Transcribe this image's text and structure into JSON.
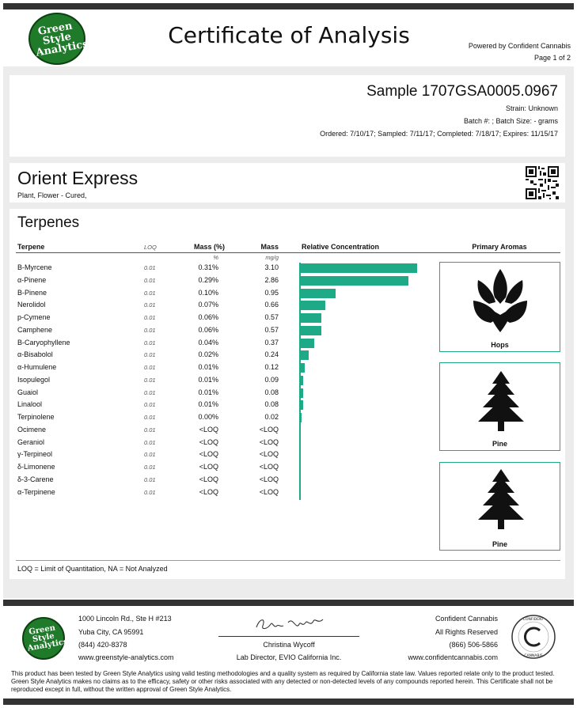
{
  "header": {
    "logo_text": "Green Style Analytics",
    "title": "Certificate of Analysis",
    "powered_by": "Powered by Confident Cannabis",
    "page": "Page 1 of 2"
  },
  "sample": {
    "id": "Sample 1707GSA0005.0967",
    "strain": "Strain: Unknown",
    "batch": "Batch #: ; Batch Size: - grams",
    "dates": "Ordered: 7/10/17; Sampled: 7/11/17; Completed: 7/18/17; Expires: 11/15/17"
  },
  "product": {
    "name": "Orient Express",
    "type": "Plant, Flower - Cured,"
  },
  "terpenes": {
    "section_title": "Terpenes",
    "headers": {
      "terpene": "Terpene",
      "loq": "LOQ",
      "mass_pct": "Mass (%)",
      "mass": "Mass",
      "relative": "Relative Concentration",
      "aromas": "Primary Aromas"
    },
    "units": {
      "mass_pct": "%",
      "mass": "mg/g"
    },
    "rows": [
      {
        "name": "B-Myrcene",
        "loq": "0.01",
        "pct": "0.31%",
        "mgg": "3.10",
        "value": 3.1
      },
      {
        "name": "α-Pinene",
        "loq": "0.01",
        "pct": "0.29%",
        "mgg": "2.86",
        "value": 2.86
      },
      {
        "name": "B-Pinene",
        "loq": "0.01",
        "pct": "0.10%",
        "mgg": "0.95",
        "value": 0.95
      },
      {
        "name": "Nerolidol",
        "loq": "0.01",
        "pct": "0.07%",
        "mgg": "0.66",
        "value": 0.66
      },
      {
        "name": "p-Cymene",
        "loq": "0.01",
        "pct": "0.06%",
        "mgg": "0.57",
        "value": 0.57
      },
      {
        "name": "Camphene",
        "loq": "0.01",
        "pct": "0.06%",
        "mgg": "0.57",
        "value": 0.57
      },
      {
        "name": "B-Caryophyllene",
        "loq": "0.01",
        "pct": "0.04%",
        "mgg": "0.37",
        "value": 0.37
      },
      {
        "name": "α-Bisabolol",
        "loq": "0.01",
        "pct": "0.02%",
        "mgg": "0.24",
        "value": 0.24
      },
      {
        "name": "α-Humulene",
        "loq": "0.01",
        "pct": "0.01%",
        "mgg": "0.12",
        "value": 0.12
      },
      {
        "name": "Isopulegol",
        "loq": "0.01",
        "pct": "0.01%",
        "mgg": "0.09",
        "value": 0.09
      },
      {
        "name": "Guaiol",
        "loq": "0.01",
        "pct": "0.01%",
        "mgg": "0.08",
        "value": 0.08
      },
      {
        "name": "Linalool",
        "loq": "0.01",
        "pct": "0.01%",
        "mgg": "0.08",
        "value": 0.08
      },
      {
        "name": "Terpinolene",
        "loq": "0.01",
        "pct": "0.00%",
        "mgg": "0.02",
        "value": 0.02
      },
      {
        "name": "Ocimene",
        "loq": "0.01",
        "pct": "<LOQ",
        "mgg": "<LOQ",
        "value": 0
      },
      {
        "name": "Geraniol",
        "loq": "0.01",
        "pct": "<LOQ",
        "mgg": "<LOQ",
        "value": 0
      },
      {
        "name": "γ-Terpineol",
        "loq": "0.01",
        "pct": "<LOQ",
        "mgg": "<LOQ",
        "value": 0
      },
      {
        "name": "δ-Limonene",
        "loq": "0.01",
        "pct": "<LOQ",
        "mgg": "<LOQ",
        "value": 0
      },
      {
        "name": "δ-3-Carene",
        "loq": "0.01",
        "pct": "<LOQ",
        "mgg": "<LOQ",
        "value": 0
      },
      {
        "name": "α-Terpinene",
        "loq": "0.01",
        "pct": "<LOQ",
        "mgg": "<LOQ",
        "value": 0
      }
    ],
    "aromas": [
      {
        "label": "Hops",
        "icon": "hops-icon"
      },
      {
        "label": "Pine",
        "icon": "pine-tree-icon"
      },
      {
        "label": "Pine",
        "icon": "pine-tree-icon"
      }
    ],
    "legend": "LOQ = Limit of Quantitation, NA = Not Analyzed",
    "bar_color": "#1faa87"
  },
  "footer": {
    "lab_address_1": "1000 Lincoln Rd., Ste H #213",
    "lab_address_2": "Yuba City, CA 95991",
    "lab_phone": "(844) 420-8378",
    "lab_web": "www.greenstyle-analytics.com",
    "signer_name": "Christina Wycoff",
    "signer_title": "Lab Director, EVIO California Inc.",
    "cc_name": "Confident Cannabis",
    "cc_rights": "All Rights Reserved",
    "cc_phone": "(866) 506-5866",
    "cc_web": "www.confidentcannabis.com",
    "seal_text": "CONFIDENT CANNABIS",
    "disclaimer": "This product has been tested by Green Style Analytics using valid testing methodologies and a quality system as required by California state law. Values reported relate only to the product tested. Green Style Analytics makes no claims as to the efficacy, safety or other risks associated with any detected or non-detected levels of any compounds reported herein. This Certificate shall not be reproduced except in full, without the written approval of Green Style Analytics."
  }
}
